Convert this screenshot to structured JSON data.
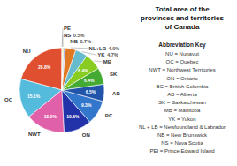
{
  "chart_data": {
    "type": "pie",
    "title": "Total area of the\nprovinces and territories\nof Canada",
    "categories": [
      "NU",
      "QC",
      "NWT",
      "ON",
      "BC",
      "AB",
      "SK",
      "MB",
      "YK",
      "NL+LB",
      "NB",
      "NS",
      "PE"
    ],
    "values": [
      20.8,
      15.1,
      15.0,
      10.6,
      9.3,
      6.5,
      6.4,
      6.4,
      4.7,
      4.0,
      0.7,
      0.5,
      0.1
    ],
    "value_labels": [
      "20.8%",
      "15.1%",
      "15.0%",
      "10.6%",
      "9.3%",
      "6.5%",
      "6.4%",
      "6.4%",
      "4.7%",
      "4.0%",
      "0.7%",
      "0.5%",
      null
    ],
    "colors": [
      "#E05030",
      "#55BBDD",
      "#E060AA",
      "#2233AA",
      "#3377CC",
      "#2255AA",
      "#44AA33",
      "#88CC22",
      "#66BBCC",
      "#E07722",
      "#AAAAEE",
      "#CCCC44",
      "#FFCCAA"
    ],
    "data_labels": true,
    "annotations": [
      "Abbreviation Key",
      "NU = Nunavut",
      "QC = Quebec",
      "NWT = Northwest Territories",
      "ON = Ontario",
      "BC = British Columbia",
      "AB = Alberta",
      "SK = Saskatchewan",
      "MB = Manitoba",
      "YK = Yukon",
      "NL + LB = Newfoundland & Labrador",
      "NB = New Brunswick",
      "NS = Nova Scotia",
      "PEI = Prince Edward Island"
    ]
  }
}
